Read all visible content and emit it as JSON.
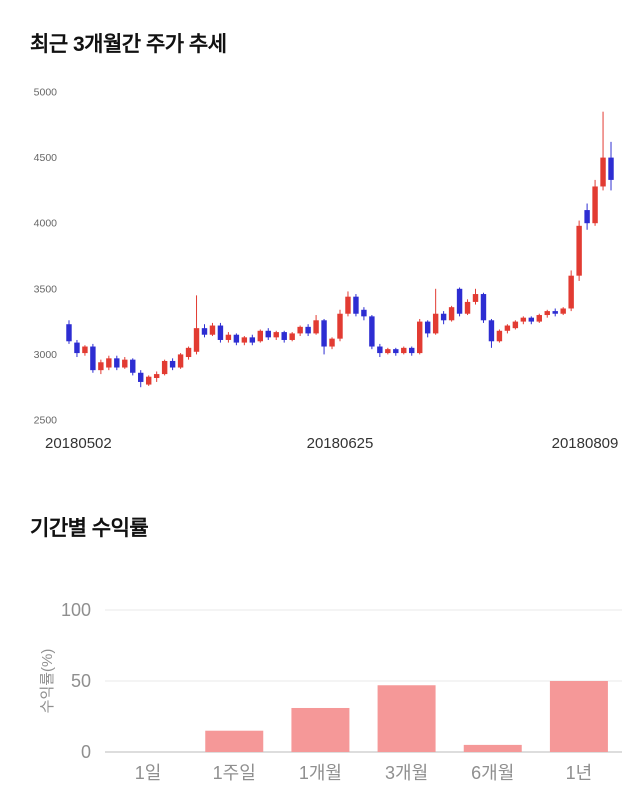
{
  "page": {
    "price_chart_title": "최근 3개월간 주가 추세",
    "returns_chart_title": "기간별 수익률"
  },
  "chart_data": [
    {
      "type": "candlestick",
      "title": "최근 3개월간 주가 추세",
      "x_tick_labels": [
        "20180502",
        "20180625",
        "20180809"
      ],
      "y_ticks": [
        2500,
        3000,
        3500,
        4000,
        4500,
        5000
      ],
      "ylim": [
        2500,
        5000
      ],
      "grid": false,
      "up_color": "#e23b32",
      "down_color": "#2d2dd2",
      "axis_text_color": "#666666",
      "x_label_color": "#333333",
      "candles_format": "[open, high, low, close]",
      "candles": [
        [
          3230,
          3260,
          3080,
          3100
        ],
        [
          3090,
          3110,
          2980,
          3010
        ],
        [
          3010,
          3070,
          2990,
          3060
        ],
        [
          3060,
          3080,
          2860,
          2880
        ],
        [
          2880,
          2960,
          2850,
          2940
        ],
        [
          2900,
          2990,
          2880,
          2970
        ],
        [
          2970,
          2990,
          2880,
          2900
        ],
        [
          2900,
          2980,
          2890,
          2960
        ],
        [
          2960,
          2970,
          2840,
          2860
        ],
        [
          2860,
          2880,
          2750,
          2790
        ],
        [
          2770,
          2840,
          2760,
          2830
        ],
        [
          2820,
          2870,
          2790,
          2850
        ],
        [
          2850,
          2960,
          2840,
          2950
        ],
        [
          2950,
          2970,
          2880,
          2900
        ],
        [
          2900,
          3010,
          2890,
          3000
        ],
        [
          2980,
          3060,
          2960,
          3050
        ],
        [
          3020,
          3450,
          3000,
          3200
        ],
        [
          3200,
          3230,
          3130,
          3150
        ],
        [
          3150,
          3240,
          3140,
          3220
        ],
        [
          3220,
          3240,
          3090,
          3110
        ],
        [
          3110,
          3170,
          3090,
          3150
        ],
        [
          3150,
          3160,
          3070,
          3090
        ],
        [
          3090,
          3140,
          3070,
          3130
        ],
        [
          3130,
          3150,
          3070,
          3090
        ],
        [
          3100,
          3190,
          3090,
          3180
        ],
        [
          3180,
          3200,
          3110,
          3130
        ],
        [
          3130,
          3180,
          3110,
          3170
        ],
        [
          3170,
          3180,
          3090,
          3110
        ],
        [
          3110,
          3170,
          3100,
          3160
        ],
        [
          3160,
          3220,
          3140,
          3210
        ],
        [
          3210,
          3230,
          3140,
          3160
        ],
        [
          3160,
          3300,
          3150,
          3260
        ],
        [
          3260,
          3270,
          3000,
          3060
        ],
        [
          3060,
          3130,
          3040,
          3120
        ],
        [
          3120,
          3340,
          3100,
          3310
        ],
        [
          3310,
          3480,
          3290,
          3440
        ],
        [
          3440,
          3460,
          3290,
          3310
        ],
        [
          3340,
          3360,
          3260,
          3290
        ],
        [
          3290,
          3300,
          3040,
          3060
        ],
        [
          3060,
          3080,
          2980,
          3010
        ],
        [
          3010,
          3050,
          3000,
          3040
        ],
        [
          3040,
          3050,
          2990,
          3010
        ],
        [
          3010,
          3060,
          3000,
          3050
        ],
        [
          3050,
          3060,
          2990,
          3010
        ],
        [
          3010,
          3270,
          3000,
          3250
        ],
        [
          3250,
          3260,
          3130,
          3160
        ],
        [
          3160,
          3500,
          3150,
          3310
        ],
        [
          3310,
          3330,
          3230,
          3260
        ],
        [
          3260,
          3370,
          3250,
          3360
        ],
        [
          3500,
          3510,
          3290,
          3310
        ],
        [
          3310,
          3420,
          3300,
          3400
        ],
        [
          3400,
          3500,
          3380,
          3460
        ],
        [
          3460,
          3470,
          3240,
          3260
        ],
        [
          3260,
          3270,
          3050,
          3100
        ],
        [
          3100,
          3190,
          3090,
          3180
        ],
        [
          3180,
          3230,
          3160,
          3220
        ],
        [
          3200,
          3260,
          3190,
          3250
        ],
        [
          3250,
          3290,
          3230,
          3280
        ],
        [
          3280,
          3290,
          3230,
          3250
        ],
        [
          3250,
          3310,
          3240,
          3300
        ],
        [
          3300,
          3340,
          3280,
          3330
        ],
        [
          3330,
          3350,
          3290,
          3310
        ],
        [
          3310,
          3360,
          3300,
          3350
        ],
        [
          3350,
          3640,
          3330,
          3600
        ],
        [
          3600,
          4020,
          3560,
          3980
        ],
        [
          4100,
          4150,
          3950,
          4000
        ],
        [
          4000,
          4330,
          3980,
          4280
        ],
        [
          4280,
          4850,
          4250,
          4500
        ],
        [
          4500,
          4620,
          4250,
          4330
        ]
      ]
    },
    {
      "type": "bar",
      "title": "기간별 수익률",
      "ylabel": "수익률(%)",
      "categories": [
        "1일",
        "1주일",
        "1개월",
        "3개월",
        "6개월",
        "1년"
      ],
      "values": [
        0,
        15,
        31,
        47,
        5,
        50
      ],
      "y_ticks": [
        0,
        50,
        100
      ],
      "ylim": [
        0,
        100
      ],
      "grid": true,
      "legend": "none",
      "bar_color": "#f59898",
      "axis_text_color": "#8f8f8f",
      "gridline_color": "#e8e8e8",
      "baseline_color": "#bbbbbb"
    }
  ]
}
